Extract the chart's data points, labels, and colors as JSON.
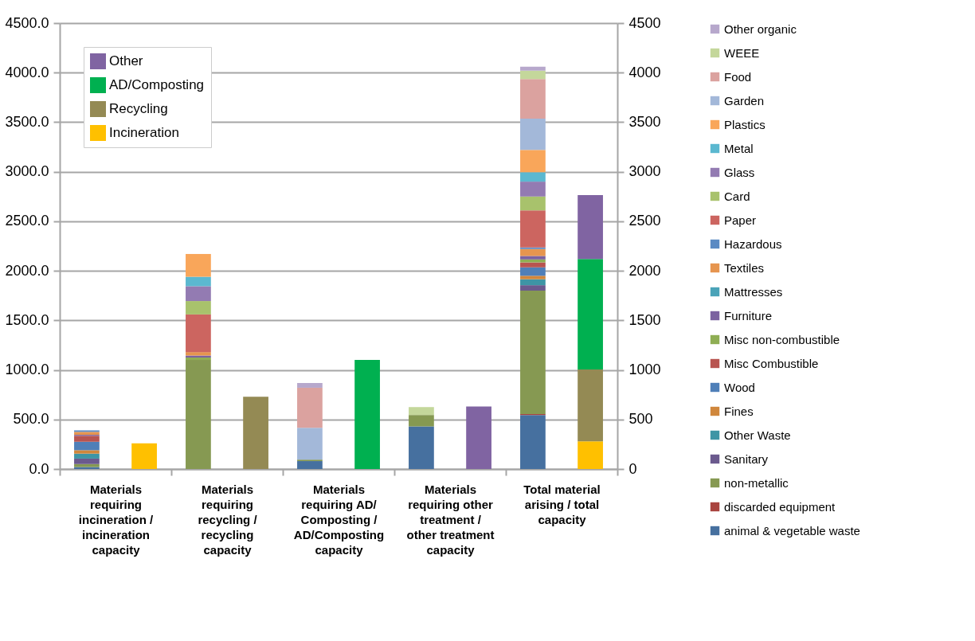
{
  "chart_data": {
    "type": "bar",
    "stacked": true,
    "grid": "y",
    "legend": "right",
    "categories": [
      "Materials requiring incineration / incineration capacity",
      "Materials requiring recycling / recycling capacity",
      "Materials requiring AD/ Composting / AD/Composting capacity",
      "Materials requiring other treatment / other treatment capacity",
      "Total material arising / total capacity"
    ],
    "ylim": [
      0,
      4500
    ],
    "yticks": [
      {
        "value": 0,
        "label": "0.0"
      },
      {
        "value": 500,
        "label": "500.0"
      },
      {
        "value": 1000,
        "label": "1000.0"
      },
      {
        "value": 1500,
        "label": "1500.0"
      },
      {
        "value": 2000,
        "label": "2000.0"
      },
      {
        "value": 2500,
        "label": "2500.0"
      },
      {
        "value": 3000,
        "label": "3000.0"
      },
      {
        "value": 3500,
        "label": "3500.0"
      },
      {
        "value": 4000,
        "label": "4000.0"
      },
      {
        "value": 4500,
        "label": "4500.0"
      }
    ],
    "y2lim": [
      0,
      4500
    ],
    "y2ticks": [
      0,
      500,
      1000,
      1500,
      2000,
      2500,
      3000,
      3500,
      4000,
      4500
    ],
    "series": [
      {
        "name": "animal & vegetable waste",
        "color": "#46709f",
        "values": [
          20,
          null,
          80,
          430,
          545
        ]
      },
      {
        "name": "discarded equipment",
        "color": "#a9443f",
        "values": [
          null,
          null,
          null,
          null,
          10
        ]
      },
      {
        "name": "non-metallic",
        "color": "#869952",
        "values": [
          30,
          1100,
          15,
          115,
          1245
        ]
      },
      {
        "name": "Sanitary",
        "color": "#6b5a8e",
        "values": [
          55,
          null,
          null,
          null,
          55
        ]
      },
      {
        "name": "Other Waste",
        "color": "#3e95a5",
        "values": [
          50,
          null,
          null,
          null,
          60
        ]
      },
      {
        "name": "Fines",
        "color": "#d0873c",
        "values": [
          35,
          null,
          null,
          null,
          35
        ]
      },
      {
        "name": "Wood",
        "color": "#4f7fb8",
        "values": [
          85,
          null,
          null,
          null,
          85
        ]
      },
      {
        "name": "Misc Combustible",
        "color": "#b85450",
        "values": [
          60,
          null,
          null,
          null,
          50
        ]
      },
      {
        "name": "Misc non-combustible",
        "color": "#8fae54",
        "values": [
          null,
          25,
          null,
          null,
          30
        ]
      },
      {
        "name": "Furniture",
        "color": "#7b62a0",
        "values": [
          10,
          20,
          null,
          null,
          35
        ]
      },
      {
        "name": "Mattresses",
        "color": "#4aa3b8",
        "values": [
          null,
          null,
          null,
          null,
          null
        ]
      },
      {
        "name": "Textiles",
        "color": "#e6954f",
        "values": [
          30,
          35,
          null,
          null,
          70
        ]
      },
      {
        "name": "Hazardous",
        "color": "#5a8ac3",
        "values": [
          15,
          null,
          null,
          null,
          15
        ]
      },
      {
        "name": "Paper",
        "color": "#cc6560",
        "values": [
          null,
          380,
          null,
          null,
          375
        ]
      },
      {
        "name": "Card",
        "color": "#a8c26c",
        "values": [
          null,
          135,
          null,
          null,
          140
        ]
      },
      {
        "name": "Glass",
        "color": "#937bb2",
        "values": [
          null,
          150,
          null,
          null,
          150
        ]
      },
      {
        "name": "Metal",
        "color": "#5bb8d0",
        "values": [
          null,
          95,
          null,
          null,
          95
        ]
      },
      {
        "name": "Plastics",
        "color": "#f9a65a",
        "values": [
          null,
          230,
          null,
          null,
          225
        ]
      },
      {
        "name": "Garden",
        "color": "#a3b8d9",
        "values": [
          null,
          null,
          320,
          null,
          315
        ]
      },
      {
        "name": "Food",
        "color": "#dba29f",
        "values": [
          null,
          null,
          405,
          null,
          400
        ]
      },
      {
        "name": "WEEE",
        "color": "#c4d79b",
        "values": [
          null,
          null,
          null,
          80,
          85
        ]
      },
      {
        "name": "Other organic",
        "color": "#b7a8cc",
        "values": [
          null,
          null,
          48,
          null,
          40
        ]
      },
      {
        "name": "Incineration",
        "color": "#ffc000",
        "axis": "y2",
        "values": [
          260,
          null,
          null,
          null,
          280
        ]
      },
      {
        "name": "Recycling",
        "color": "#948a54",
        "axis": "y2",
        "values": [
          null,
          730,
          null,
          null,
          725
        ]
      },
      {
        "name": "AD/Composting",
        "color": "#00b050",
        "axis": "y2",
        "values": [
          null,
          null,
          1100,
          null,
          1115
        ]
      },
      {
        "name": "Other",
        "color": "#8064a2",
        "axis": "y2",
        "values": [
          null,
          null,
          null,
          630,
          645
        ]
      }
    ]
  }
}
